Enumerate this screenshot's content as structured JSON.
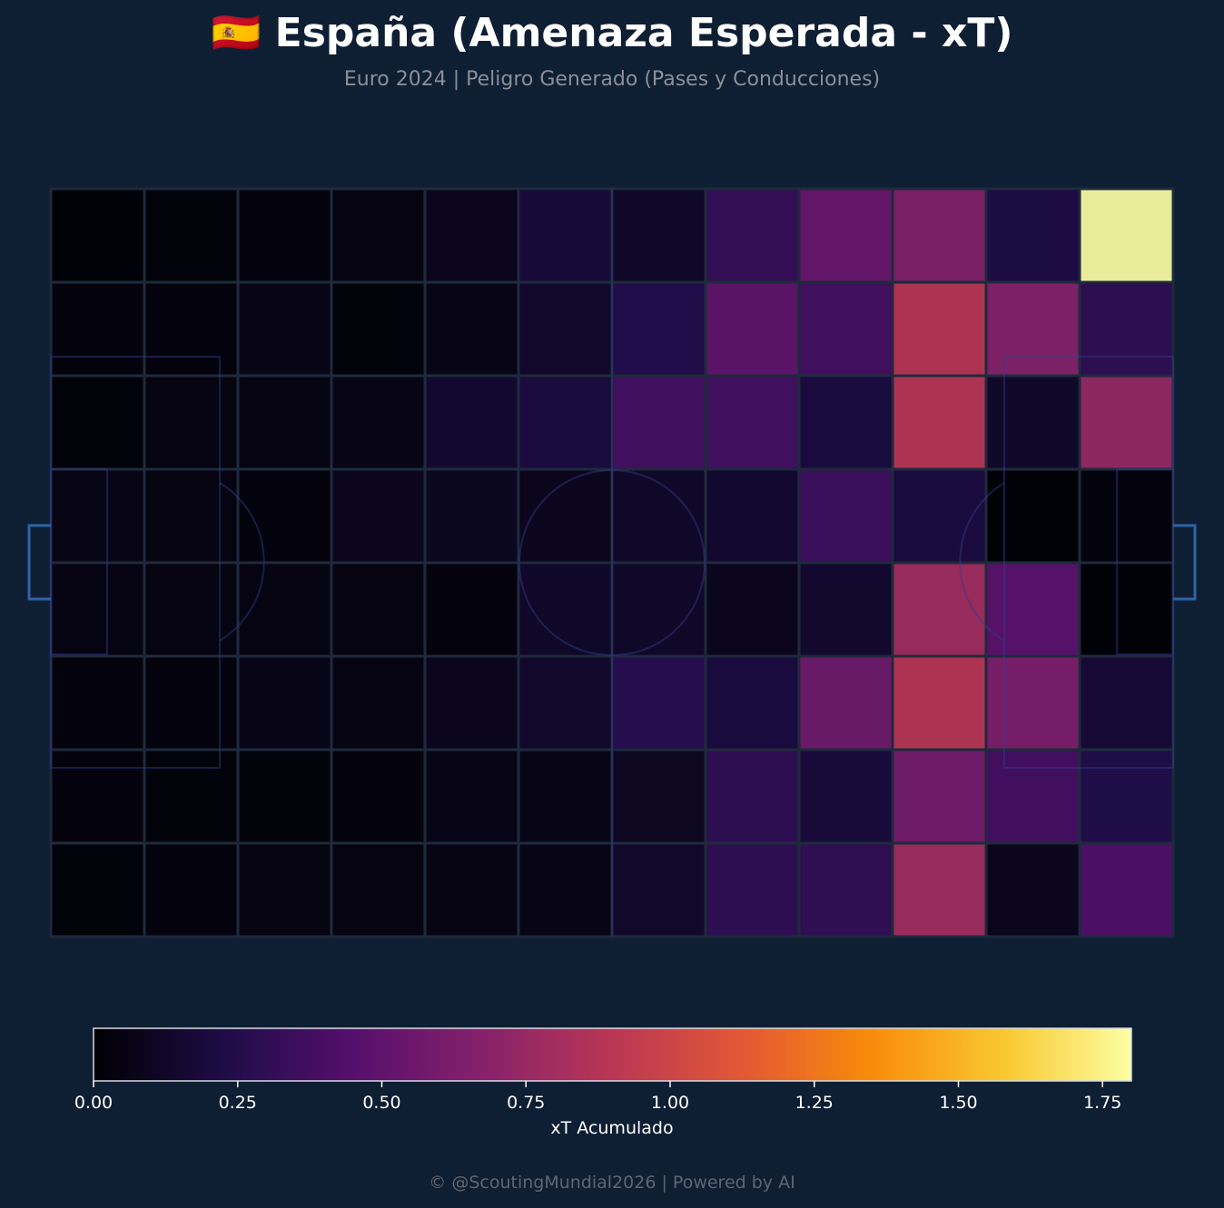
{
  "header": {
    "title": "🇪🇸 España (Amenaza Esperada - xT)",
    "subtitle": "Euro 2024 | Peligro Generado (Pases y Conducciones)"
  },
  "footer": {
    "text": "© @ScoutingMundial2026 | Powered by AI"
  },
  "colors": {
    "background": "#0e1e33",
    "grid_line": "#1e2a3c",
    "pitch_line": "#1a2a5c",
    "goal": "#2e63a8"
  },
  "chart_data": {
    "type": "heatmap",
    "colormap": "inferno",
    "vmin": 0,
    "vmax": 1.8,
    "grid": true,
    "rows": 8,
    "cols": 12,
    "values": [
      [
        0.0,
        0.01,
        0.02,
        0.03,
        0.08,
        0.18,
        0.12,
        0.33,
        0.55,
        0.65,
        0.22,
        1.8
      ],
      [
        0.02,
        0.02,
        0.05,
        0.01,
        0.06,
        0.13,
        0.25,
        0.5,
        0.38,
        0.9,
        0.68,
        0.3
      ],
      [
        0.01,
        0.03,
        0.04,
        0.05,
        0.15,
        0.2,
        0.38,
        0.38,
        0.2,
        0.9,
        0.12,
        0.75
      ],
      [
        0.06,
        0.03,
        0.02,
        0.08,
        0.09,
        0.08,
        0.12,
        0.15,
        0.36,
        0.2,
        0.0,
        0.02
      ],
      [
        0.04,
        0.03,
        0.04,
        0.03,
        0.02,
        0.12,
        0.12,
        0.08,
        0.14,
        0.8,
        0.48,
        0.0
      ],
      [
        0.02,
        0.02,
        0.06,
        0.04,
        0.08,
        0.13,
        0.26,
        0.2,
        0.58,
        0.9,
        0.64,
        0.17
      ],
      [
        0.02,
        0.01,
        0.01,
        0.02,
        0.05,
        0.06,
        0.1,
        0.3,
        0.19,
        0.6,
        0.39,
        0.24
      ],
      [
        0.01,
        0.02,
        0.03,
        0.03,
        0.04,
        0.06,
        0.13,
        0.3,
        0.31,
        0.8,
        0.08,
        0.43
      ]
    ],
    "colorbar": {
      "label": "xT Acumulado",
      "ticks": [
        "0.00",
        "0.25",
        "0.50",
        "0.75",
        "1.00",
        "1.25",
        "1.50",
        "1.75"
      ],
      "tick_values": [
        0,
        0.25,
        0.5,
        0.75,
        1.0,
        1.25,
        1.5,
        1.75
      ]
    }
  }
}
